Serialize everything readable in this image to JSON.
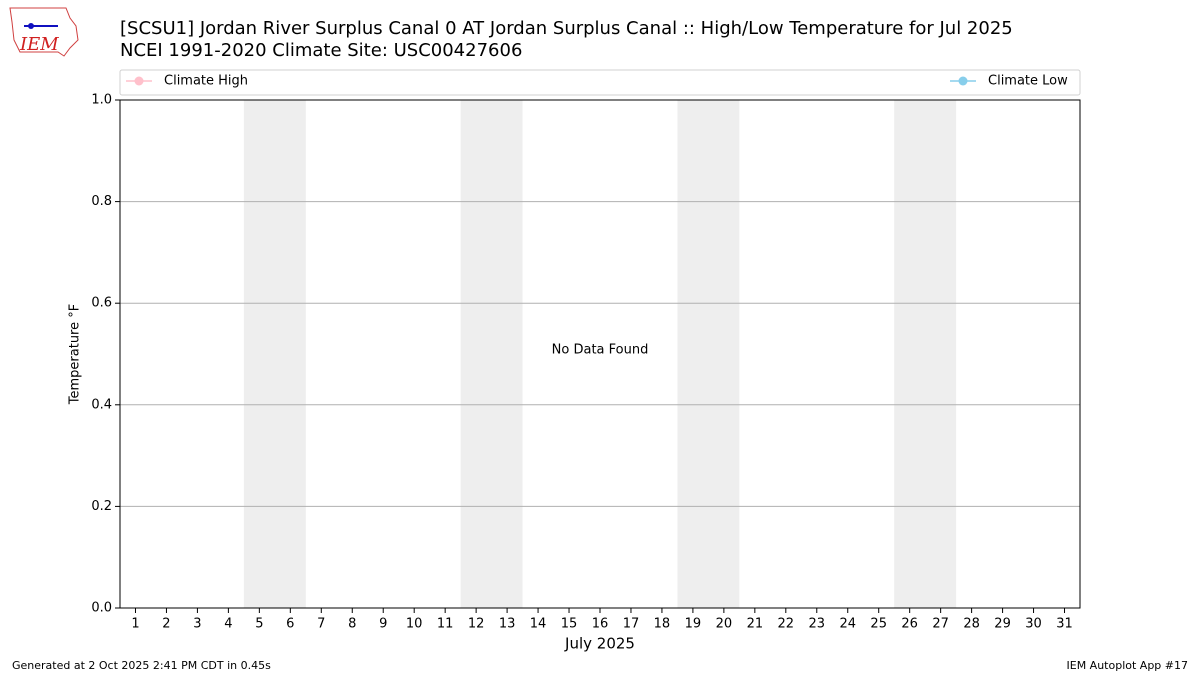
{
  "logo_text": "IEM",
  "chart_data": {
    "type": "line",
    "title": "[SCSU1] Jordan River Surplus Canal 0 AT Jordan Surplus Canal :: High/Low Temperature for Jul 2025",
    "subtitle": "NCEI 1991-2020 Climate Site: USC00427606",
    "x_label": "July 2025",
    "y_label": "Temperature °F",
    "annotation": "No Data Found",
    "x": [
      1,
      2,
      3,
      4,
      5,
      6,
      7,
      8,
      9,
      10,
      11,
      12,
      13,
      14,
      15,
      16,
      17,
      18,
      19,
      20,
      21,
      22,
      23,
      24,
      25,
      26,
      27,
      28,
      29,
      30,
      31
    ],
    "series": [
      {
        "name": "Climate High",
        "color": "#ffc0cb",
        "values": [
          null,
          null,
          null,
          null,
          null,
          null,
          null,
          null,
          null,
          null,
          null,
          null,
          null,
          null,
          null,
          null,
          null,
          null,
          null,
          null,
          null,
          null,
          null,
          null,
          null,
          null,
          null,
          null,
          null,
          null,
          null
        ]
      },
      {
        "name": "Climate Low",
        "color": "#87ceeb",
        "values": [
          null,
          null,
          null,
          null,
          null,
          null,
          null,
          null,
          null,
          null,
          null,
          null,
          null,
          null,
          null,
          null,
          null,
          null,
          null,
          null,
          null,
          null,
          null,
          null,
          null,
          null,
          null,
          null,
          null,
          null,
          null
        ]
      }
    ],
    "shaded_days": [
      [
        5,
        6
      ],
      [
        12,
        13
      ],
      [
        19,
        20
      ],
      [
        26,
        27
      ]
    ],
    "shade_color": "#eeeeee",
    "xlim": [
      0.5,
      31.5
    ],
    "xticks": [
      1,
      2,
      3,
      4,
      5,
      6,
      7,
      8,
      9,
      10,
      11,
      12,
      13,
      14,
      15,
      16,
      17,
      18,
      19,
      20,
      21,
      22,
      23,
      24,
      25,
      26,
      27,
      28,
      29,
      30,
      31
    ],
    "ylim": [
      0,
      1
    ],
    "yticks": [
      {
        "value": 0,
        "label": "0.0"
      },
      0.2,
      0.4,
      0.6,
      0.8,
      {
        "value": 1,
        "label": "1.0"
      }
    ],
    "grid": true,
    "legend": "top"
  },
  "footer": {
    "left": "Generated at 2 Oct 2025 2:41 PM CDT in 0.45s",
    "right": "IEM Autoplot App #17"
  }
}
